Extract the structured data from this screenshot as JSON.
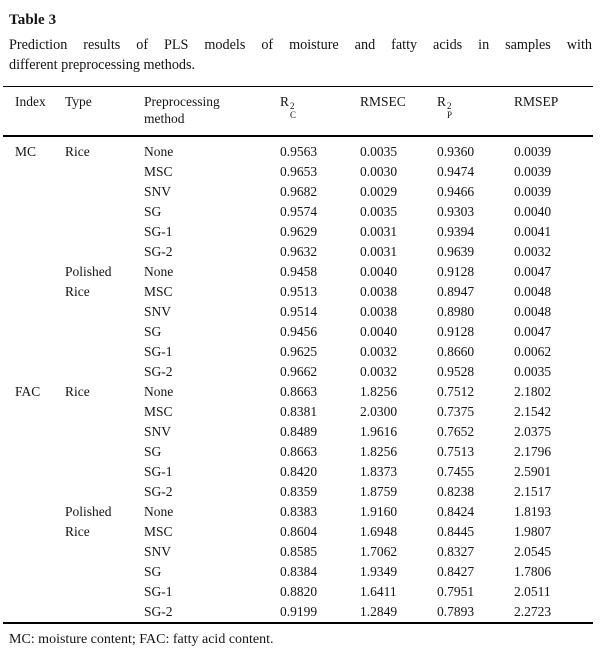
{
  "page": {
    "title": "Table 3",
    "caption_lines": [
      "Prediction results of PLS models of moisture and fatty acids in samples with",
      "different preprocessing methods."
    ],
    "footnote": "MC: moisture content; FAC: fatty acid content."
  },
  "table": {
    "columns": [
      {
        "key": "index",
        "label": "Index"
      },
      {
        "key": "type",
        "label": "Type"
      },
      {
        "key": "method",
        "label": "Preprocessing method"
      },
      {
        "key": "rc2",
        "base": "R",
        "sup": "2",
        "sub": "C"
      },
      {
        "key": "rmsec",
        "label": "RMSEC"
      },
      {
        "key": "rp2",
        "base": "R",
        "sup": "2",
        "sub": "P"
      },
      {
        "key": "rmsep",
        "label": "RMSEP"
      }
    ],
    "rows": [
      [
        "MC",
        "Rice",
        "None",
        "0.9563",
        "0.0035",
        "0.9360",
        "0.0039"
      ],
      [
        "",
        "",
        "MSC",
        "0.9653",
        "0.0030",
        "0.9474",
        "0.0039"
      ],
      [
        "",
        "",
        "SNV",
        "0.9682",
        "0.0029",
        "0.9466",
        "0.0039"
      ],
      [
        "",
        "",
        "SG",
        "0.9574",
        "0.0035",
        "0.9303",
        "0.0040"
      ],
      [
        "",
        "",
        "SG-1",
        "0.9629",
        "0.0031",
        "0.9394",
        "0.0041"
      ],
      [
        "",
        "",
        "SG-2",
        "0.9632",
        "0.0031",
        "0.9639",
        "0.0032"
      ],
      [
        "",
        "Polished",
        "None",
        "0.9458",
        "0.0040",
        "0.9128",
        "0.0047"
      ],
      [
        "",
        "Rice",
        "MSC",
        "0.9513",
        "0.0038",
        "0.8947",
        "0.0048"
      ],
      [
        "",
        "",
        "SNV",
        "0.9514",
        "0.0038",
        "0.8980",
        "0.0048"
      ],
      [
        "",
        "",
        "SG",
        "0.9456",
        "0.0040",
        "0.9128",
        "0.0047"
      ],
      [
        "",
        "",
        "SG-1",
        "0.9625",
        "0.0032",
        "0.8660",
        "0.0062"
      ],
      [
        "",
        "",
        "SG-2",
        "0.9662",
        "0.0032",
        "0.9528",
        "0.0035"
      ],
      [
        "FAC",
        "Rice",
        "None",
        "0.8663",
        "1.8256",
        "0.7512",
        "2.1802"
      ],
      [
        "",
        "",
        "MSC",
        "0.8381",
        "2.0300",
        "0.7375",
        "2.1542"
      ],
      [
        "",
        "",
        "SNV",
        "0.8489",
        "1.9616",
        "0.7652",
        "2.0375"
      ],
      [
        "",
        "",
        "SG",
        "0.8663",
        "1.8256",
        "0.7513",
        "2.1796"
      ],
      [
        "",
        "",
        "SG-1",
        "0.8420",
        "1.8373",
        "0.7455",
        "2.5901"
      ],
      [
        "",
        "",
        "SG-2",
        "0.8359",
        "1.8759",
        "0.8238",
        "2.1517"
      ],
      [
        "",
        "Polished",
        "None",
        "0.8383",
        "1.9160",
        "0.8424",
        "1.8193"
      ],
      [
        "",
        "Rice",
        "MSC",
        "0.8604",
        "1.6948",
        "0.8445",
        "1.9807"
      ],
      [
        "",
        "",
        "SNV",
        "0.8585",
        "1.7062",
        "0.8327",
        "2.0545"
      ],
      [
        "",
        "",
        "SG",
        "0.8384",
        "1.9349",
        "0.8427",
        "1.7806"
      ],
      [
        "",
        "",
        "SG-1",
        "0.8820",
        "1.6411",
        "0.7951",
        "2.0511"
      ],
      [
        "",
        "",
        "SG-2",
        "0.9199",
        "1.2849",
        "0.7893",
        "2.2723"
      ]
    ]
  }
}
